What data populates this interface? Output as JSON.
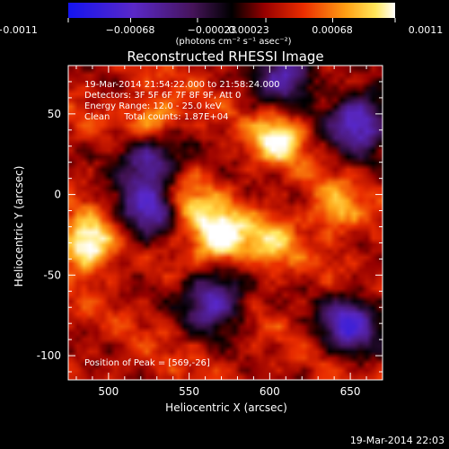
{
  "chart_data": {
    "type": "heatmap",
    "title": "Reconstructed RHESSI Image",
    "xlabel": "Heliocentric X (arcsec)",
    "ylabel": "Heliocentric Y (arcsec)",
    "xlim": [
      475,
      670
    ],
    "ylim": [
      -115,
      80
    ],
    "xticks": [
      500,
      550,
      600,
      650
    ],
    "yticks": [
      -100,
      -50,
      0,
      50
    ],
    "colorbar": {
      "range": [
        -0.0011,
        0.0011
      ],
      "tick_labels": [
        "−0.0011",
        "−0.00068",
        "−0.00023",
        "0.00023",
        "0.00068",
        "0.0011"
      ],
      "units": "(photons cm⁻² s⁻¹ asec⁻²)"
    },
    "annotations": [
      "19-Mar-2014 21:54:22.000 to 21:58:24.000",
      "Detectors: 3F 5F 6F 7F 8F 9F, Att 0",
      "Energy Range: 12.0 - 25.0 keV",
      "Clean     Total counts: 1.87E+04"
    ],
    "peak_label": "Position of Peak = [569,-26]",
    "peak": {
      "x": 569,
      "y": -26
    },
    "sources": [
      {
        "x": 569,
        "y": -26,
        "value": 0.0011
      },
      {
        "x": 487,
        "y": -31,
        "value": 0.00095
      },
      {
        "x": 527,
        "y": 43,
        "value": 0.0008
      },
      {
        "x": 605,
        "y": 35,
        "value": 0.00075
      },
      {
        "x": 548,
        "y": -8,
        "value": 0.0006
      },
      {
        "x": 600,
        "y": -30,
        "value": 0.00055
      },
      {
        "x": 640,
        "y": -10,
        "value": 0.0005
      }
    ],
    "negative_regions": [
      {
        "x": 525,
        "y": 25,
        "value": -0.0007
      },
      {
        "x": 525,
        "y": -10,
        "value": -0.00065
      },
      {
        "x": 655,
        "y": 45,
        "value": -0.0008
      },
      {
        "x": 565,
        "y": -65,
        "value": -0.0007
      },
      {
        "x": 650,
        "y": -80,
        "value": -0.0007
      },
      {
        "x": 610,
        "y": 75,
        "value": -0.0006
      }
    ]
  },
  "footer_timestamp": "19-Mar-2014 22:03"
}
